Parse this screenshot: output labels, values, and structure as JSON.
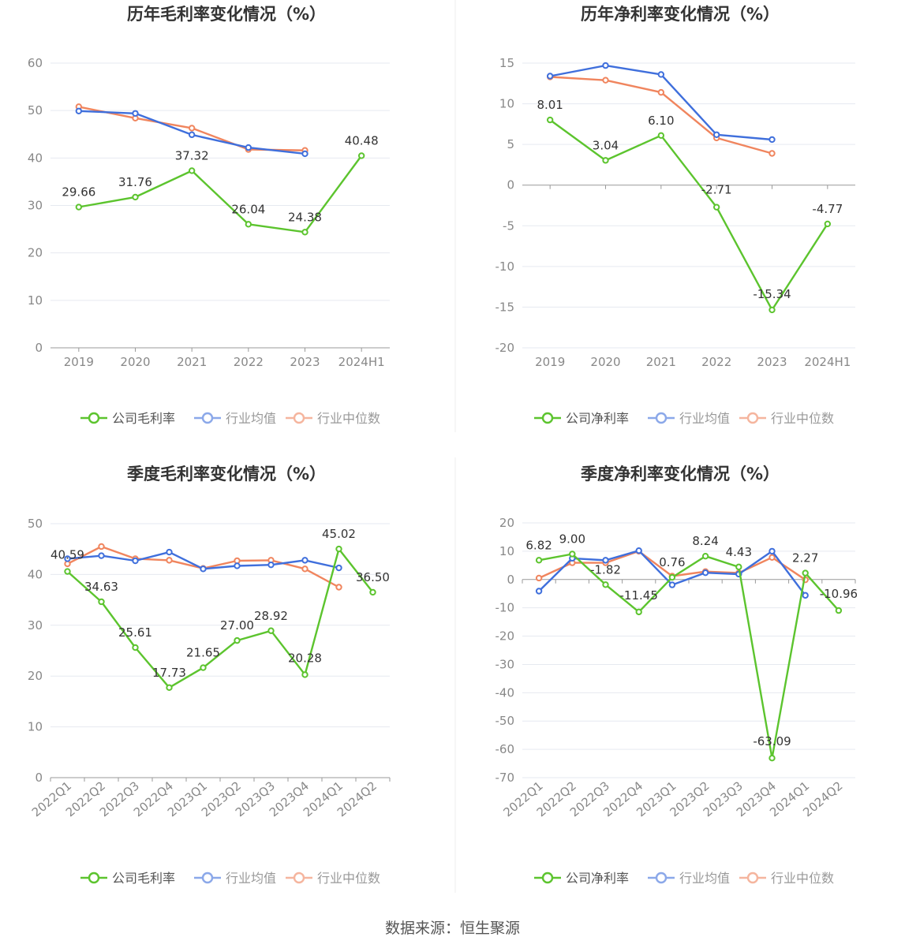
{
  "source": "数据来源：恒生聚源",
  "legend_labels": {
    "industry_avg": "行业均值",
    "industry_median": "行业中位数"
  },
  "colors": {
    "company": "#5cc42e",
    "industry_avg": "#3f6fdc",
    "industry_median": "#f0855e",
    "grid": "#e6e9f0",
    "axis": "#999999",
    "label": "#333333",
    "tick": "#888888"
  },
  "chart_data": [
    {
      "id": "annual-gross",
      "type": "line",
      "title": "历年毛利率变化情况（%）",
      "categories": [
        "2019",
        "2020",
        "2021",
        "2022",
        "2023",
        "2024H1"
      ],
      "ylim": [
        0,
        60
      ],
      "yticks": [
        0,
        10,
        20,
        30,
        40,
        50,
        60
      ],
      "series": [
        {
          "key": "company",
          "name": "公司毛利率",
          "values": [
            29.66,
            31.76,
            37.32,
            26.04,
            24.38,
            40.48
          ],
          "labels": [
            "29.66",
            "31.76",
            "37.32",
            "26.04",
            "24.38",
            "40.48"
          ]
        },
        {
          "key": "industry_avg",
          "name": "行业均值",
          "values": [
            49.9,
            49.4,
            44.9,
            42.2,
            40.9,
            null
          ]
        },
        {
          "key": "industry_median",
          "name": "行业中位数",
          "values": [
            50.8,
            48.4,
            46.3,
            41.8,
            41.6,
            null
          ]
        }
      ]
    },
    {
      "id": "annual-net",
      "type": "line",
      "title": "历年净利率变化情况（%）",
      "categories": [
        "2019",
        "2020",
        "2021",
        "2022",
        "2023",
        "2024H1"
      ],
      "ylim": [
        -20,
        15
      ],
      "yticks": [
        -20,
        -15,
        -10,
        -5,
        0,
        5,
        10,
        15
      ],
      "series": [
        {
          "key": "company",
          "name": "公司净利率",
          "values": [
            8.01,
            3.04,
            6.1,
            -2.71,
            -15.34,
            -4.77
          ],
          "labels": [
            "8.01",
            "3.04",
            "6.10",
            "-2.71",
            "-15.34",
            "-4.77"
          ]
        },
        {
          "key": "industry_avg",
          "name": "行业均值",
          "values": [
            13.4,
            14.7,
            13.6,
            6.2,
            5.6,
            null
          ]
        },
        {
          "key": "industry_median",
          "name": "行业中位数",
          "values": [
            13.3,
            12.9,
            11.4,
            5.8,
            3.9,
            null
          ]
        }
      ]
    },
    {
      "id": "quarterly-gross",
      "type": "line",
      "title": "季度毛利率变化情况（%）",
      "categories": [
        "2022Q1",
        "2022Q2",
        "2022Q3",
        "2022Q4",
        "2023Q1",
        "2023Q2",
        "2023Q3",
        "2023Q4",
        "2024Q1",
        "2024Q2"
      ],
      "ylim": [
        0,
        50
      ],
      "yticks": [
        0,
        10,
        20,
        30,
        40,
        50
      ],
      "rotate_x": true,
      "series": [
        {
          "key": "company",
          "name": "公司毛利率",
          "values": [
            40.59,
            34.63,
            25.61,
            17.73,
            21.65,
            27.0,
            28.92,
            20.28,
            45.02,
            36.5
          ],
          "labels": [
            "40.59",
            "34.63",
            "25.61",
            "17.73",
            "21.65",
            "27.00",
            "28.92",
            "20.28",
            "45.02",
            "36.50"
          ]
        },
        {
          "key": "industry_avg",
          "name": "行业均值",
          "values": [
            43.1,
            43.7,
            42.7,
            44.4,
            41.1,
            41.7,
            41.9,
            42.8,
            41.3,
            null
          ]
        },
        {
          "key": "industry_median",
          "name": "行业中位数",
          "values": [
            42.1,
            45.5,
            43.1,
            42.8,
            41.2,
            42.7,
            42.8,
            41.1,
            37.5,
            null
          ]
        }
      ]
    },
    {
      "id": "quarterly-net",
      "type": "line",
      "title": "季度净利率变化情况（%）",
      "categories": [
        "2022Q1",
        "2022Q2",
        "2022Q3",
        "2022Q4",
        "2023Q1",
        "2023Q2",
        "2023Q3",
        "2023Q4",
        "2024Q1",
        "2024Q2"
      ],
      "ylim": [
        -70,
        20
      ],
      "yticks": [
        -70,
        -60,
        -50,
        -40,
        -30,
        -20,
        -10,
        0,
        10,
        20
      ],
      "rotate_x": true,
      "series": [
        {
          "key": "company",
          "name": "公司净利率",
          "values": [
            6.82,
            9.0,
            -1.82,
            -11.45,
            0.76,
            8.24,
            4.43,
            -63.09,
            2.27,
            -10.96
          ],
          "labels": [
            "6.82",
            "9.00",
            "-1.82",
            "-11.45",
            "0.76",
            "8.24",
            "4.43",
            "-63.09",
            "2.27",
            "-10.96"
          ]
        },
        {
          "key": "industry_avg",
          "name": "行业均值",
          "values": [
            -4.1,
            7.5,
            6.8,
            10.2,
            -1.9,
            2.4,
            1.9,
            10.0,
            -5.6,
            null
          ]
        },
        {
          "key": "industry_median",
          "name": "行业中位数",
          "values": [
            0.5,
            5.9,
            5.9,
            10.0,
            1.2,
            2.8,
            2.3,
            7.8,
            -0.1,
            null
          ]
        }
      ]
    }
  ]
}
